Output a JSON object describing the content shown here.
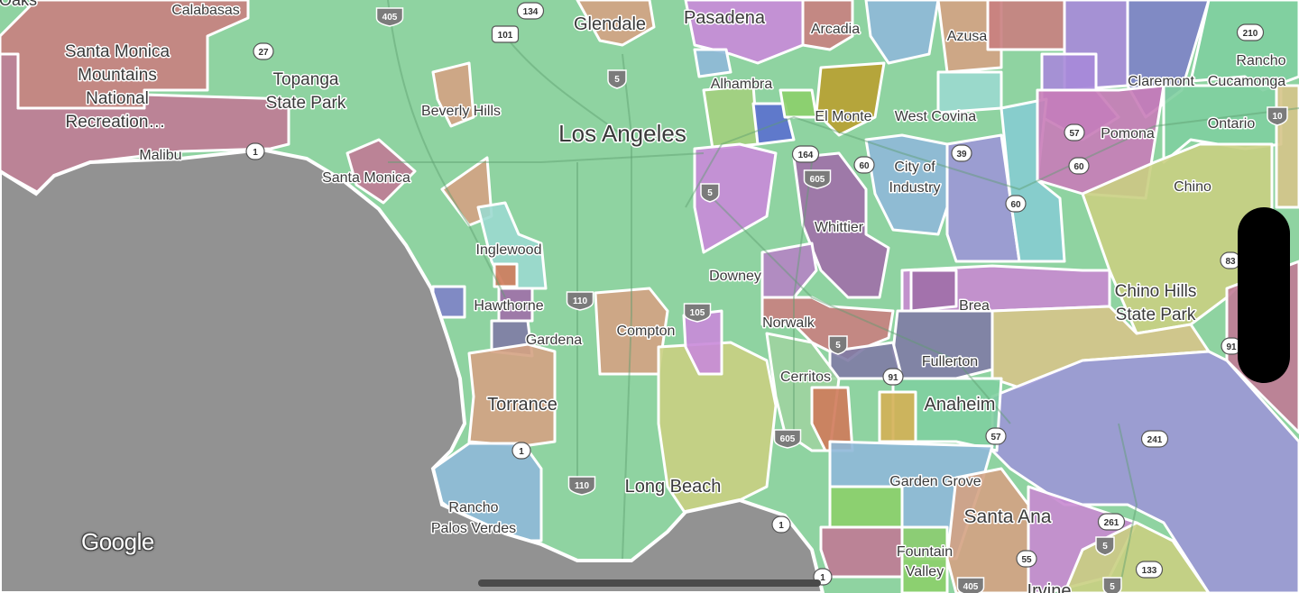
{
  "map": {
    "provider_logo": "Google",
    "colors": {
      "land": "#8fd3a1",
      "ocean": "#929292",
      "region_palette": [
        "#c07a95",
        "#c98080",
        "#d4a283",
        "#c98ad9",
        "#8fb8d8",
        "#a3cf7e",
        "#5a6fcf",
        "#9bd9cf",
        "#a78ad9",
        "#8e7ab0",
        "#c9cf82",
        "#d6c48a",
        "#7fcfa0",
        "#cf7a5a",
        "#d4b055",
        "#8ccf6a",
        "#7e82c8",
        "#a06fa8",
        "#b584c4",
        "#b79ad6",
        "#c88ad0",
        "#9c97d6",
        "#86ccd0",
        "#9fd3a0",
        "#b9a030",
        "#c87cb8",
        "#7f7ba5"
      ]
    },
    "labels": [
      "Oaks",
      "Calabasas",
      "Santa Monica",
      "Mountains",
      "National",
      "Recreation…",
      "Topanga",
      "State Park",
      "Glendale",
      "Pasadena",
      "Arcadia",
      "Azusa",
      "Claremont",
      "Rancho",
      "Cucamonga",
      "Beverly Hills",
      "Alhambra",
      "El Monte",
      "West Covina",
      "Los Angeles",
      "Malibu",
      "Santa Monica",
      "City of",
      "Industry",
      "Pomona",
      "Ontario",
      "Chino",
      "Whittier",
      "Inglewood",
      "Downey",
      "Chino Hills",
      "State Park",
      "Hawthorne",
      "Brea",
      "Compton",
      "Norwalk",
      "Gardena",
      "Fullerton",
      "Cerritos",
      "Torrance",
      "Anaheim",
      "Garden Grove",
      "Long Beach",
      "Rancho",
      "Palos Verdes",
      "Santa Ana",
      "Fountain",
      "Valley",
      "Irvine"
    ],
    "shields": [
      {
        "route": "405",
        "type": "interstate"
      },
      {
        "route": "5",
        "type": "interstate"
      },
      {
        "route": "5",
        "type": "interstate"
      },
      {
        "route": "110",
        "type": "interstate"
      },
      {
        "route": "105",
        "type": "interstate"
      },
      {
        "route": "605",
        "type": "interstate"
      },
      {
        "route": "605",
        "type": "interstate"
      },
      {
        "route": "110",
        "type": "interstate"
      },
      {
        "route": "10",
        "type": "interstate"
      },
      {
        "route": "5",
        "type": "interstate"
      },
      {
        "route": "405",
        "type": "interstate"
      },
      {
        "route": "5",
        "type": "interstate"
      },
      {
        "route": "5",
        "type": "interstate"
      },
      {
        "route": "101",
        "type": "us"
      },
      {
        "route": "134",
        "type": "state"
      },
      {
        "route": "27",
        "type": "state"
      },
      {
        "route": "1",
        "type": "state"
      },
      {
        "route": "1",
        "type": "state"
      },
      {
        "route": "1",
        "type": "state"
      },
      {
        "route": "1",
        "type": "state"
      },
      {
        "route": "164",
        "type": "state"
      },
      {
        "route": "60",
        "type": "state"
      },
      {
        "route": "39",
        "type": "state"
      },
      {
        "route": "60",
        "type": "state"
      },
      {
        "route": "57",
        "type": "state"
      },
      {
        "route": "60",
        "type": "state"
      },
      {
        "route": "210",
        "type": "state"
      },
      {
        "route": "83",
        "type": "state"
      },
      {
        "route": "91",
        "type": "state"
      },
      {
        "route": "91",
        "type": "state"
      },
      {
        "route": "57",
        "type": "state"
      },
      {
        "route": "241",
        "type": "state"
      },
      {
        "route": "261",
        "type": "state"
      },
      {
        "route": "55",
        "type": "state"
      },
      {
        "route": "133",
        "type": "state"
      }
    ]
  }
}
